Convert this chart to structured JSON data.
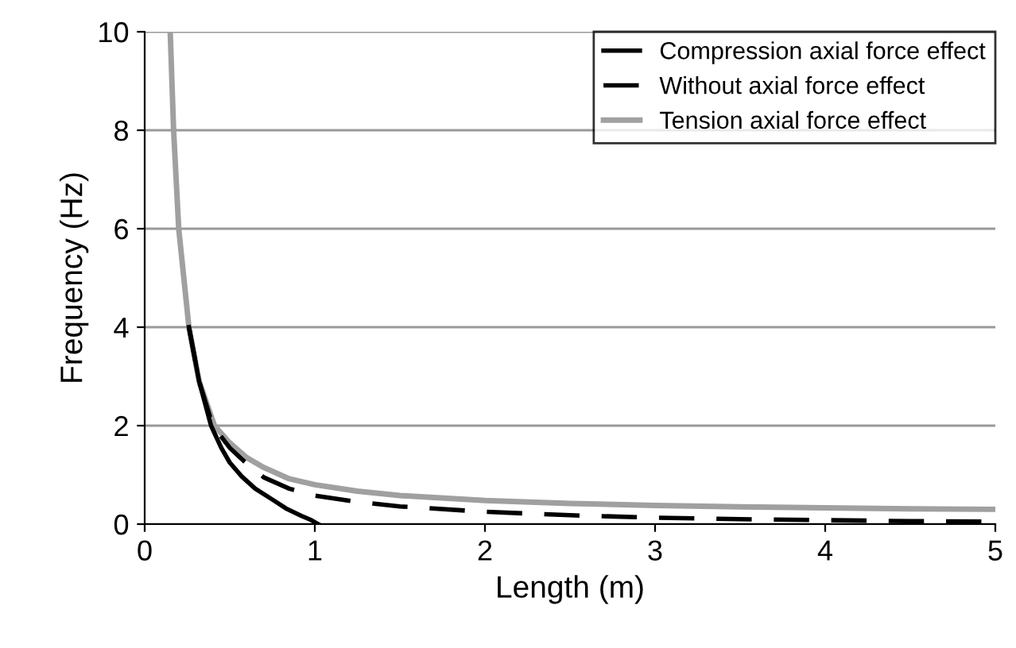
{
  "chart_data": {
    "type": "line",
    "xlabel": "Length (m)",
    "ylabel": "Frequency (Hz)",
    "xlim": [
      0,
      5
    ],
    "ylim": [
      0,
      10
    ],
    "xticks": [
      0,
      1,
      2,
      3,
      4,
      5
    ],
    "yticks": [
      0,
      2,
      4,
      6,
      8,
      10
    ],
    "grid": "y",
    "legend": "top right",
    "series": [
      {
        "name": "Compression axial force effect",
        "color": "#000000",
        "line_style": "solid",
        "x": [
          0.26,
          0.32,
          0.39,
          0.45,
          0.5,
          0.57,
          0.65,
          0.75,
          0.83,
          0.92,
          0.98,
          1.02
        ],
        "values": [
          4,
          2.9,
          2,
          1.55,
          1.25,
          0.97,
          0.72,
          0.5,
          0.32,
          0.17,
          0.08,
          0
        ]
      },
      {
        "name": "Without axial force effect",
        "color": "#000000",
        "line_style": "dashed",
        "x": [
          0.26,
          0.32,
          0.4,
          0.5,
          0.58,
          0.7,
          0.85,
          1,
          1.25,
          1.5,
          2,
          2.5,
          3,
          3.5,
          4,
          4.5,
          5
        ],
        "values": [
          4,
          2.9,
          2,
          1.55,
          1.29,
          0.95,
          0.72,
          0.58,
          0.45,
          0.36,
          0.25,
          0.18,
          0.13,
          0.1,
          0.08,
          0.06,
          0.05
        ]
      },
      {
        "name": "Tension axial force effect",
        "color": "#a0a0a0",
        "line_style": "solid",
        "x": [
          0.15,
          0.17,
          0.2,
          0.26,
          0.32,
          0.41,
          0.5,
          0.6,
          0.7,
          0.85,
          1,
          1.25,
          1.5,
          2,
          2.5,
          3,
          3.5,
          4,
          4.5,
          5
        ],
        "values": [
          10,
          8,
          6,
          4,
          2.9,
          2,
          1.65,
          1.35,
          1.15,
          0.92,
          0.8,
          0.67,
          0.58,
          0.48,
          0.42,
          0.38,
          0.35,
          0.33,
          0.31,
          0.3
        ]
      }
    ]
  }
}
